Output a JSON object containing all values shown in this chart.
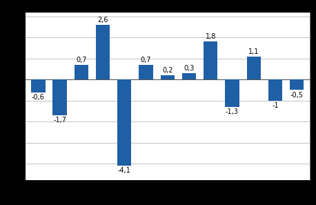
{
  "values": [
    -0.6,
    -1.7,
    0.7,
    2.6,
    -4.1,
    0.7,
    0.2,
    0.3,
    1.8,
    -1.3,
    1.1,
    -1.0,
    -0.5
  ],
  "labels": [
    "-0,6",
    "-1,7",
    "0,7",
    "2,6",
    "-4,1",
    "0,7",
    "0,2",
    "0,3",
    "1,8",
    "-1,3",
    "1,1",
    "-1",
    "-0,5"
  ],
  "bar_color": "#1F5FA6",
  "ylim": [
    -4.8,
    3.2
  ],
  "yticks": [
    -4.0,
    -3.0,
    -2.0,
    -1.0,
    0.0,
    1.0,
    2.0,
    3.0
  ],
  "grid_color": "#aaaaaa",
  "background_color": "#ffffff",
  "outer_background": "#000000",
  "bar_width": 0.65,
  "label_fontsize": 7.0
}
